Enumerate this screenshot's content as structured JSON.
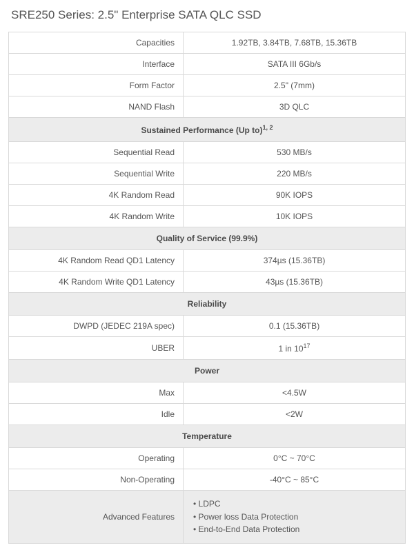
{
  "title": "SRE250 Series: 2.5\" Enterprise SATA QLC SSD",
  "specs": {
    "capacities": {
      "label": "Capacities",
      "value": "1.92TB, 3.84TB, 7.68TB, 15.36TB"
    },
    "interface": {
      "label": "Interface",
      "value": "SATA III 6Gb/s"
    },
    "form_factor": {
      "label": "Form Factor",
      "value": "2.5\" (7mm)"
    },
    "nand_flash": {
      "label": "NAND Flash",
      "value": "3D QLC"
    }
  },
  "sections": {
    "perf": {
      "header_prefix": "Sustained Performance (Up to)",
      "header_sup": "1, 2",
      "rows": {
        "seq_read": {
          "label": "Sequential Read",
          "value": "530 MB/s"
        },
        "seq_write": {
          "label": "Sequential Write",
          "value": "220 MB/s"
        },
        "rand_read": {
          "label": "4K Random Read",
          "value": "90K IOPS"
        },
        "rand_write": {
          "label": "4K Random Write",
          "value": "10K IOPS"
        }
      }
    },
    "qos": {
      "header": "Quality of Service (99.9%)",
      "rows": {
        "read_lat": {
          "label": "4K Random Read QD1 Latency",
          "value": "374µs (15.36TB)"
        },
        "write_lat": {
          "label": "4K Random Write QD1 Latency",
          "value": "43µs (15.36TB)"
        }
      }
    },
    "reliability": {
      "header": "Reliability",
      "rows": {
        "dwpd": {
          "label": "DWPD (JEDEC 219A spec)",
          "value": "0.1 (15.36TB)"
        },
        "uber": {
          "label": "UBER",
          "value_prefix": "1 in 10",
          "value_sup": "17"
        }
      }
    },
    "power": {
      "header": "Power",
      "rows": {
        "max": {
          "label": "Max",
          "value": "<4.5W"
        },
        "idle": {
          "label": "Idle",
          "value": "<2W"
        }
      }
    },
    "temp": {
      "header": "Temperature",
      "rows": {
        "operating": {
          "label": "Operating",
          "value": "0°C ~ 70°C"
        },
        "non_operating": {
          "label": "Non-Operating",
          "value": "-40°C ~ 85°C"
        }
      }
    }
  },
  "features": {
    "label": "Advanced Features",
    "items": {
      "0": "LDPC",
      "1": "Power loss Data Protection",
      "2": "End-to-End Data Protection"
    }
  },
  "colors": {
    "border": "#d9d9d9",
    "section_bg": "#ececec",
    "text": "#555555"
  }
}
